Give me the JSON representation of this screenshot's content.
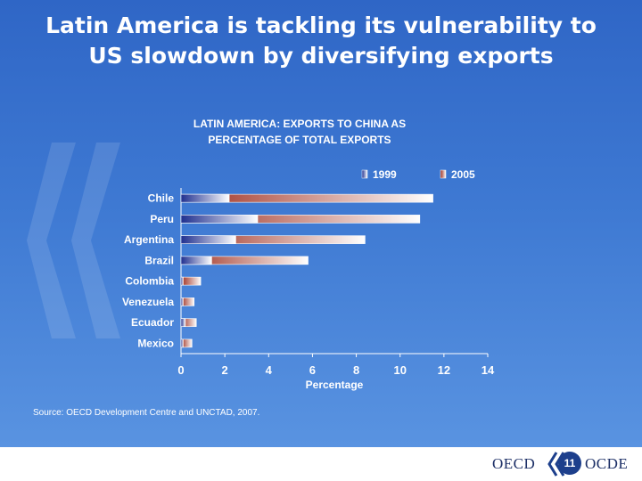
{
  "slide": {
    "title_line1": "Latin America is tackling its vulnerability to",
    "title_line2": "US slowdown by diversifying exports",
    "source": "Source: OECD Development Centre and UNCTAD, 2007.",
    "page_number": "11",
    "footer_left": "OECD",
    "footer_right": "OCDE"
  },
  "colors": {
    "background": "#3f7ad3",
    "series_1999": "#1f2f8f",
    "series_2005": "#9c2a1a"
  },
  "chart_data": {
    "type": "bar",
    "orientation": "horizontal",
    "title_line1": "LATIN AMERICA: EXPORTS TO CHINA AS",
    "title_line2": "PERCENTAGE OF TOTAL EXPORTS",
    "categories": [
      "Chile",
      "Peru",
      "Argentina",
      "Brazil",
      "Colombia",
      "Venezuela",
      "Ecuador",
      "Mexico"
    ],
    "series": [
      {
        "name": "1999",
        "values": [
          2.2,
          3.5,
          2.5,
          1.4,
          0.1,
          0.1,
          0.2,
          0.1
        ]
      },
      {
        "name": "2005",
        "values": [
          11.5,
          10.9,
          8.4,
          5.8,
          0.9,
          0.6,
          0.7,
          0.5
        ]
      }
    ],
    "xlabel": "Percentage",
    "xlim": [
      0,
      14
    ],
    "xticks": [
      "0",
      "2",
      "4",
      "6",
      "8",
      "10",
      "12",
      "14"
    ],
    "legend_position": "top-right",
    "grid": false
  }
}
